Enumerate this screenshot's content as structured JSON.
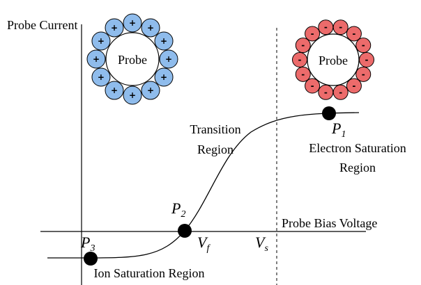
{
  "axes": {
    "y_label": "Probe Current",
    "x_label": "Probe Bias Voltage"
  },
  "ion_probe": {
    "label": "Probe",
    "charge": "+"
  },
  "electron_probe": {
    "label": "Probe",
    "charge": "-"
  },
  "regions": {
    "transition": [
      "Transition",
      "Region"
    ],
    "electron_saturation": [
      "Electron Saturation",
      "Region"
    ],
    "ion_saturation": "Ion Saturation Region"
  },
  "points": {
    "p1": {
      "letter": "P",
      "sub": "1"
    },
    "p2": {
      "letter": "P",
      "sub": "2"
    },
    "p3": {
      "letter": "P",
      "sub": "3"
    }
  },
  "voltages": {
    "vf": {
      "letter": "V",
      "sub": "f"
    },
    "vs": {
      "letter": "V",
      "sub": "s"
    }
  }
}
